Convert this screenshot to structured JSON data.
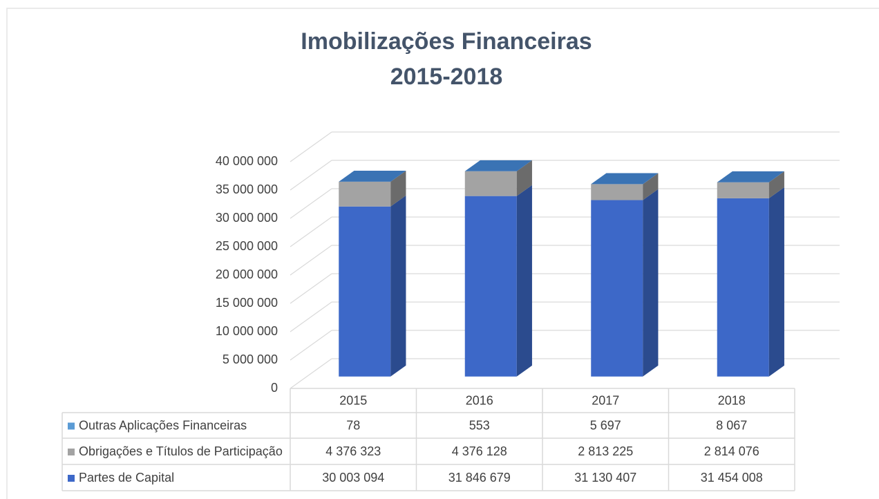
{
  "chart_data": {
    "type": "bar3d_stacked",
    "title": "Imobilizações Financeiras",
    "subtitle": "2015-2018",
    "categories": [
      "2015",
      "2016",
      "2017",
      "2018"
    ],
    "series": [
      {
        "name": "Partes de Capital",
        "color": "#3d68c8",
        "side_color": "#2b4b8e",
        "values": [
          30003094,
          31846679,
          31130407,
          31454008
        ],
        "value_labels": [
          "30 003 094",
          "31 846 679",
          "31 130 407",
          "31 454 008"
        ]
      },
      {
        "name": "Obrigações e Títulos de Participação",
        "color": "#a3a3a3",
        "side_color": "#6b6b6b",
        "values": [
          4376323,
          4376128,
          2813225,
          2814076
        ],
        "value_labels": [
          "4 376 323",
          "4 376 128",
          "2 813 225",
          "2 814 076"
        ]
      },
      {
        "name": "Outras Aplicações Financeiras",
        "color": "#5b9bd5",
        "side_color": "#3c6ea0",
        "top_color": "#3a73b4",
        "values": [
          78,
          553,
          5697,
          8067
        ],
        "value_labels": [
          "78",
          "553",
          "5 697",
          "8 067"
        ]
      }
    ],
    "ylim": [
      0,
      40000000
    ],
    "yticks": [
      0,
      {
        "value": 5000000,
        "label": "5 000 000"
      },
      {
        "value": 10000000,
        "label": "10 000 000"
      },
      {
        "value": 15000000,
        "label": "15 000 000"
      },
      {
        "value": 20000000,
        "label": "20 000 000"
      },
      {
        "value": 25000000,
        "label": "25 000 000"
      },
      {
        "value": 30000000,
        "label": "30 000 000"
      },
      {
        "value": 35000000,
        "label": "35 000 000"
      },
      {
        "value": 40000000,
        "label": "40 000 000"
      }
    ],
    "grid": true,
    "legend": "table"
  }
}
